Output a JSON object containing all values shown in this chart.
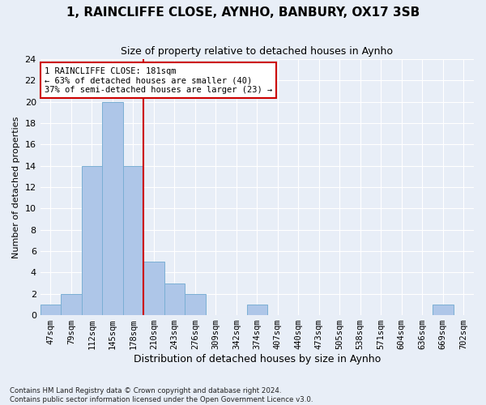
{
  "title": "1, RAINCLIFFE CLOSE, AYNHO, BANBURY, OX17 3SB",
  "subtitle": "Size of property relative to detached houses in Aynho",
  "xlabel": "Distribution of detached houses by size in Aynho",
  "ylabel": "Number of detached properties",
  "categories": [
    "47sqm",
    "79sqm",
    "112sqm",
    "145sqm",
    "178sqm",
    "210sqm",
    "243sqm",
    "276sqm",
    "309sqm",
    "342sqm",
    "374sqm",
    "407sqm",
    "440sqm",
    "473sqm",
    "505sqm",
    "538sqm",
    "571sqm",
    "604sqm",
    "636sqm",
    "669sqm",
    "702sqm"
  ],
  "values": [
    1,
    2,
    14,
    20,
    14,
    5,
    3,
    2,
    0,
    0,
    1,
    0,
    0,
    0,
    0,
    0,
    0,
    0,
    0,
    1,
    0
  ],
  "bar_color": "#aec6e8",
  "bar_edge_color": "#7bafd4",
  "ylim": [
    0,
    24
  ],
  "yticks": [
    0,
    2,
    4,
    6,
    8,
    10,
    12,
    14,
    16,
    18,
    20,
    22,
    24
  ],
  "property_line_x": 4.5,
  "annotation_line1": "1 RAINCLIFFE CLOSE: 181sqm",
  "annotation_line2": "← 63% of detached houses are smaller (40)",
  "annotation_line3": "37% of semi-detached houses are larger (23) →",
  "annotation_box_color": "#ffffff",
  "annotation_box_edge": "#cc0000",
  "property_line_color": "#cc0000",
  "footer": "Contains HM Land Registry data © Crown copyright and database right 2024.\nContains public sector information licensed under the Open Government Licence v3.0.",
  "bg_color": "#e8eef7",
  "plot_bg_color": "#e8eef7",
  "grid_color": "#ffffff",
  "title_fontsize": 11,
  "subtitle_fontsize": 9,
  "ylabel_fontsize": 8,
  "xlabel_fontsize": 9
}
